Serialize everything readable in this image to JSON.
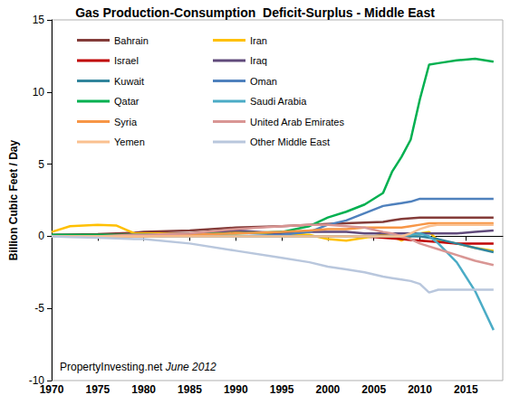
{
  "chart_data": {
    "type": "line",
    "title": "Gas Production-Consumption  Deficit-Surplus - Middle East",
    "y_label": "Billion Cubic Feet / Day",
    "annotations": [
      "PropertyInvesting.net",
      "June 2012"
    ],
    "x": [
      1970,
      1972,
      1975,
      1977,
      1979,
      1980,
      1985,
      1990,
      1995,
      1998,
      2000,
      2002,
      2004,
      2006,
      2007,
      2008,
      2009,
      2010,
      2011,
      2012,
      2014,
      2016,
      2018
    ],
    "xlim": [
      1970,
      2019
    ],
    "xticks": [
      1970,
      1975,
      1980,
      1985,
      1990,
      1995,
      2000,
      2005,
      2010,
      2015
    ],
    "ylim": [
      -10,
      15
    ],
    "yticks": [
      -10,
      -5,
      0,
      5,
      10,
      15
    ],
    "grid": false,
    "legend": "upper left",
    "series": [
      {
        "name": "Bahrain",
        "color": "#843c39",
        "values": [
          0.1,
          0.12,
          0.15,
          0.2,
          0.25,
          0.3,
          0.4,
          0.6,
          0.7,
          0.8,
          0.85,
          0.9,
          0.95,
          1.0,
          1.1,
          1.2,
          1.25,
          1.3,
          1.3,
          1.3,
          1.3,
          1.3,
          1.3
        ]
      },
      {
        "name": "Iran",
        "color": "#ffc000",
        "values": [
          0.3,
          0.7,
          0.8,
          0.75,
          0.2,
          0.2,
          0.2,
          0.3,
          0.2,
          0.1,
          -0.2,
          -0.3,
          -0.1,
          0.1,
          0,
          -0.3,
          0,
          0.2,
          0.3,
          -0.3,
          -0.5,
          -0.8,
          -1.0
        ]
      },
      {
        "name": "Israel",
        "color": "#c00000",
        "values": [
          0,
          0,
          0,
          0,
          0,
          0,
          0,
          0,
          0,
          0,
          0,
          0,
          0,
          -0.1,
          -0.15,
          -0.2,
          -0.25,
          -0.3,
          -0.35,
          -0.4,
          -0.5,
          -0.5,
          -0.5
        ]
      },
      {
        "name": "Iraq",
        "color": "#604a7b",
        "values": [
          0,
          0,
          0,
          0.05,
          0.1,
          0.1,
          0.2,
          0.4,
          0.2,
          0.3,
          0.3,
          0.3,
          0.2,
          0.2,
          0.2,
          0.2,
          0.2,
          0.2,
          0.2,
          0.2,
          0.2,
          0.3,
          0.4
        ]
      },
      {
        "name": "Kuwait",
        "color": "#31859c",
        "values": [
          0,
          0,
          0,
          0,
          0,
          0,
          0,
          0,
          0,
          0,
          0,
          0,
          0,
          0,
          0,
          0,
          0,
          0,
          -0.1,
          -0.2,
          -0.5,
          -0.8,
          -1.1
        ]
      },
      {
        "name": "Oman",
        "color": "#4f81bd",
        "values": [
          0,
          0,
          0,
          0,
          0,
          0,
          0,
          0,
          0.1,
          0.3,
          0.8,
          1.1,
          1.6,
          2.1,
          2.2,
          2.3,
          2.4,
          2.6,
          2.6,
          2.6,
          2.6,
          2.6,
          2.6
        ]
      },
      {
        "name": "Qatar",
        "color": "#00b050",
        "values": [
          0.1,
          0.1,
          0.1,
          0.1,
          0.1,
          0.1,
          0.15,
          0.2,
          0.3,
          0.7,
          1.3,
          1.7,
          2.2,
          3.0,
          4.5,
          5.5,
          6.7,
          9.5,
          11.9,
          12.0,
          12.2,
          12.3,
          12.1
        ]
      },
      {
        "name": "Saudi Arabia",
        "color": "#4bacc6",
        "values": [
          0,
          0,
          0,
          0,
          0,
          0,
          0,
          0,
          0,
          0,
          0,
          0,
          0,
          0,
          0,
          0,
          0.1,
          0.2,
          0,
          -0.5,
          -1.8,
          -3.8,
          -6.5
        ]
      },
      {
        "name": "Syria",
        "color": "#f79646",
        "values": [
          0,
          0,
          0,
          0,
          0,
          0,
          0.1,
          0.2,
          0.3,
          0.4,
          0.5,
          0.5,
          0.6,
          0.6,
          0.6,
          0.6,
          0.7,
          0.8,
          0.9,
          0.9,
          0.9,
          0.9,
          0.9
        ]
      },
      {
        "name": "United Arab Emirates",
        "color": "#d99694",
        "values": [
          0,
          0,
          0,
          0.05,
          0.1,
          0.1,
          0.2,
          0.5,
          0.7,
          0.8,
          0.8,
          0.7,
          0.6,
          0.3,
          0.2,
          0,
          -0.2,
          -0.5,
          -0.7,
          -0.9,
          -1.3,
          -1.7,
          -2.0
        ]
      },
      {
        "name": "Yemen",
        "color": "#fac090",
        "values": [
          0,
          0,
          0,
          0,
          0,
          0,
          0,
          0,
          0,
          0,
          0,
          0,
          0,
          0,
          0,
          0,
          0.2,
          0.5,
          0.7,
          0.8,
          0.8,
          0.8,
          0.8
        ]
      },
      {
        "name": "Other Middle East",
        "color": "#b9c7dd",
        "values": [
          0,
          -0.05,
          -0.1,
          -0.15,
          -0.2,
          -0.2,
          -0.5,
          -1.0,
          -1.5,
          -1.8,
          -2.1,
          -2.3,
          -2.5,
          -2.8,
          -2.9,
          -3.0,
          -3.1,
          -3.3,
          -3.9,
          -3.7,
          -3.7,
          -3.7,
          -3.7
        ]
      }
    ]
  }
}
